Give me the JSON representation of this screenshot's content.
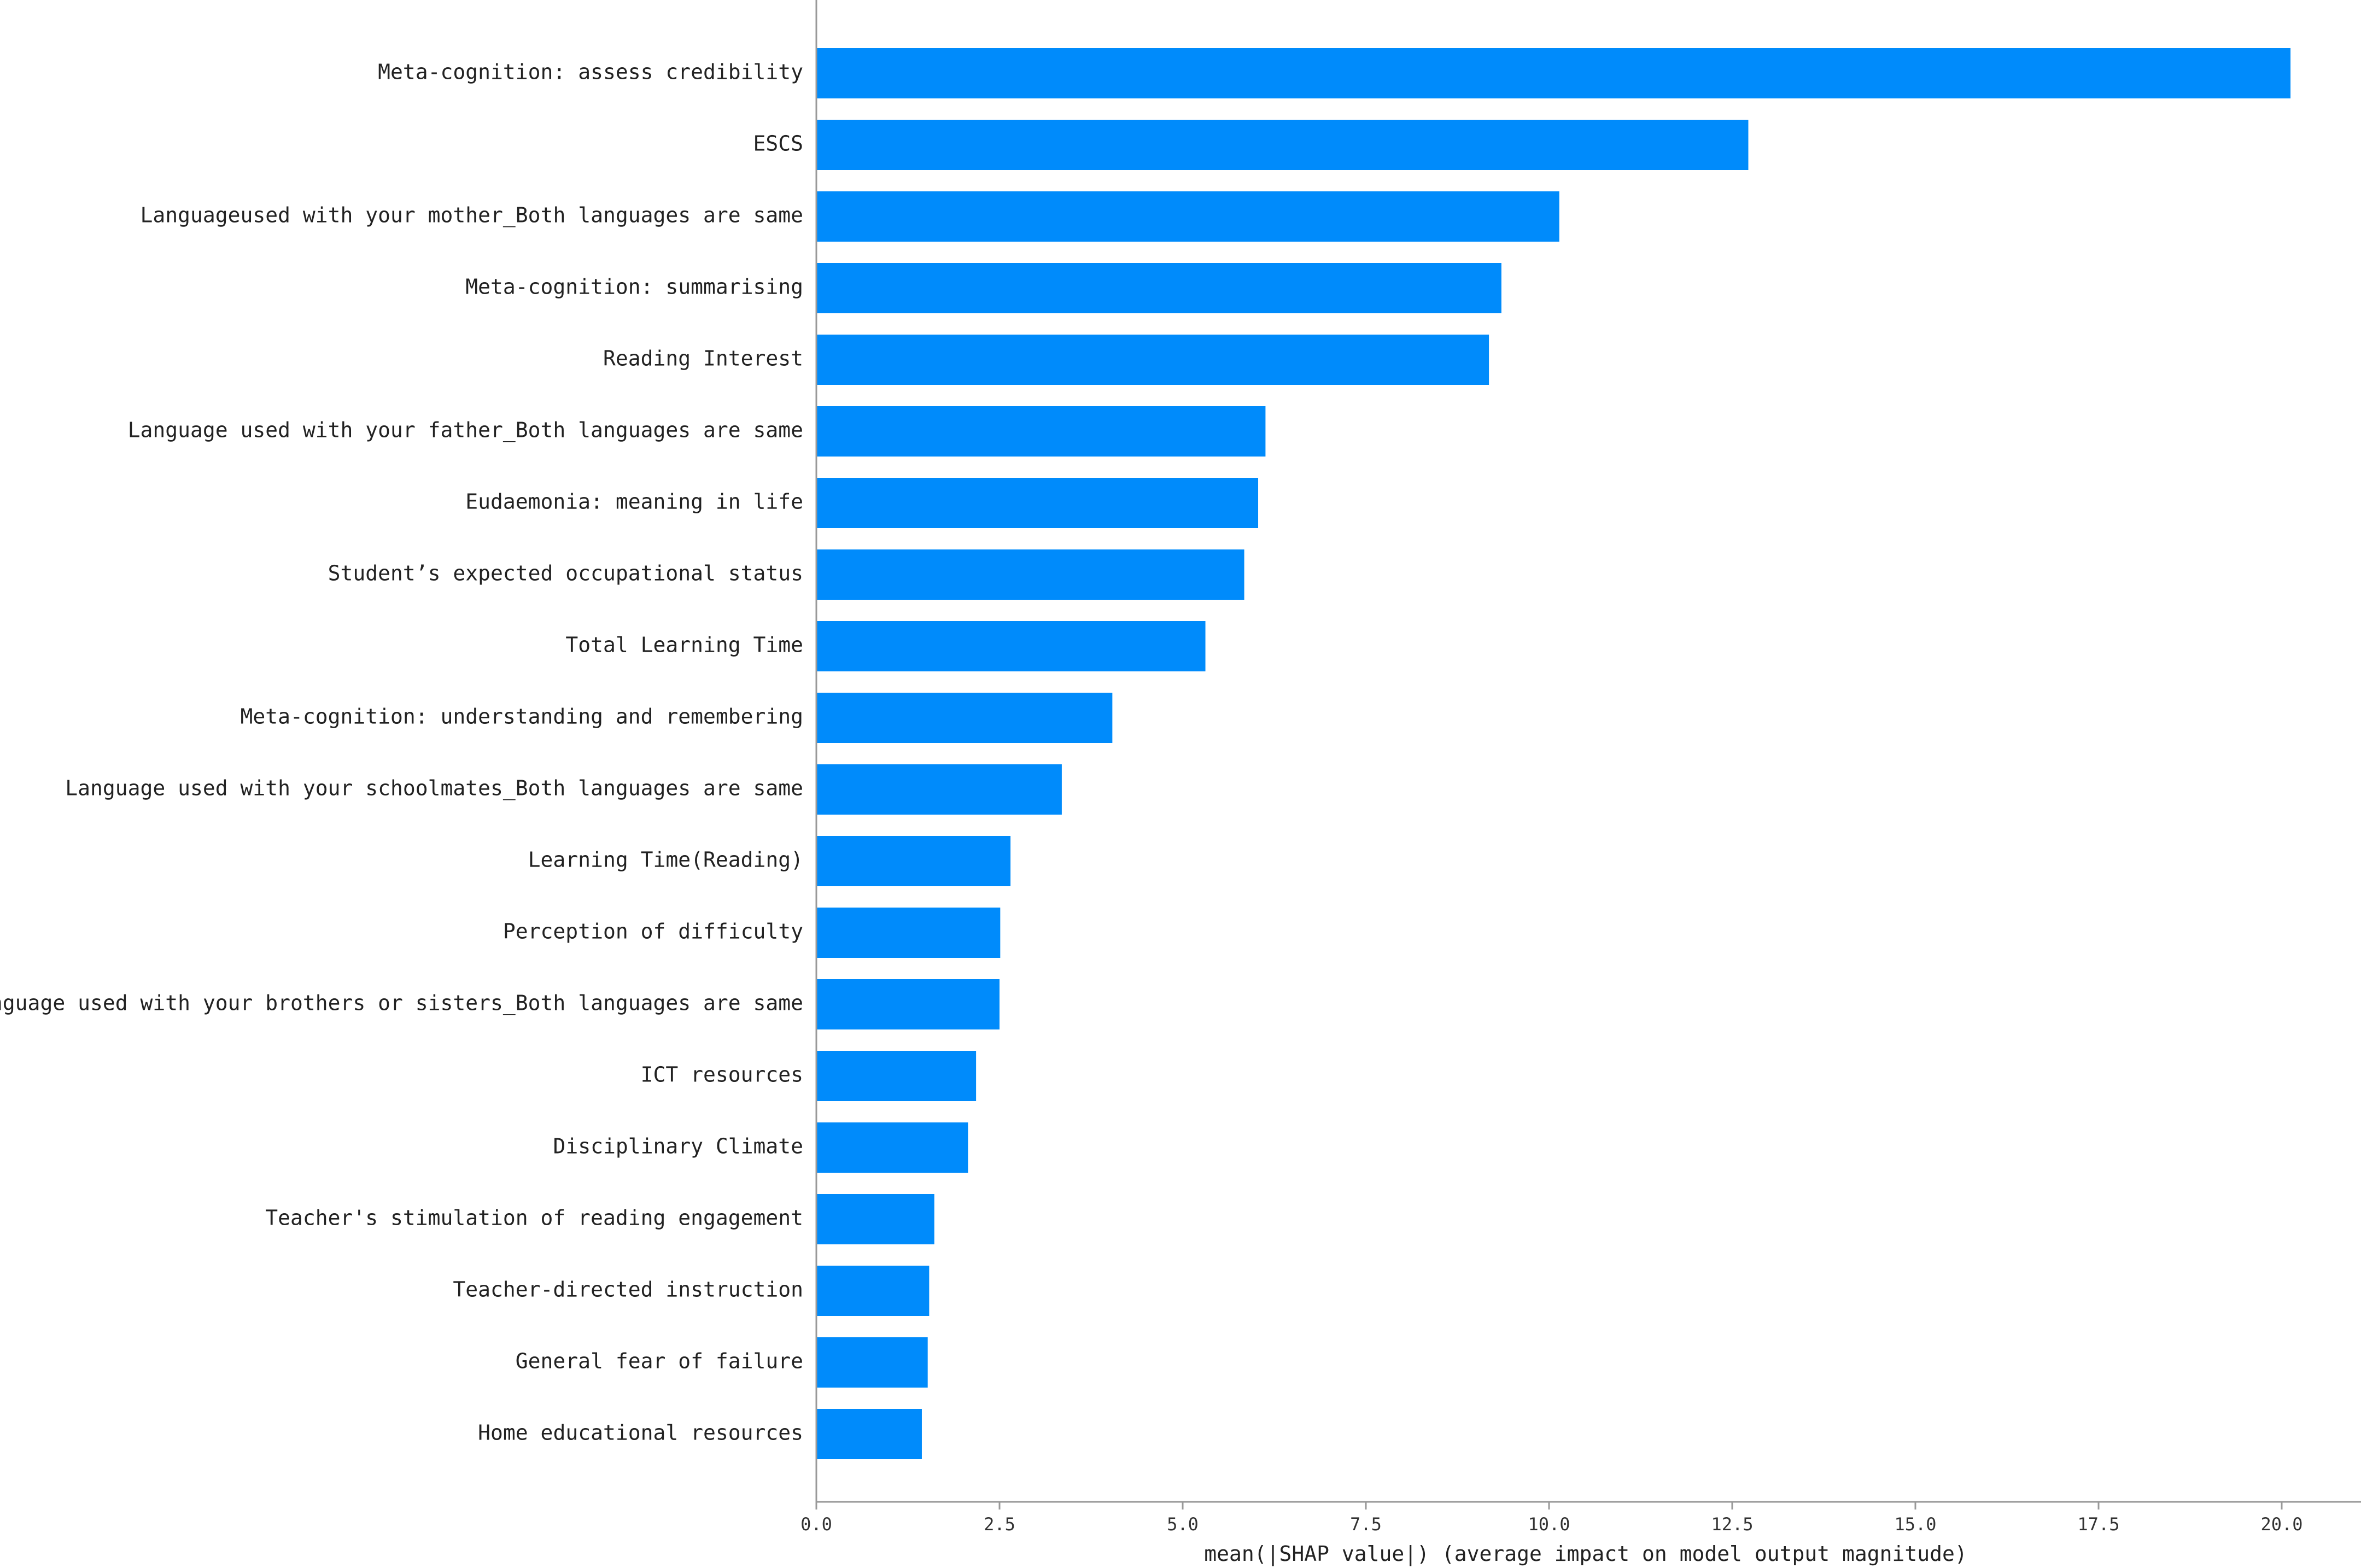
{
  "chart_data": {
    "type": "bar",
    "orientation": "horizontal",
    "categories": [
      "Meta-cognition: assess credibility",
      "ESCS",
      "Languageused with your mother_Both languages are same",
      "Meta-cognition: summarising",
      "Reading Interest",
      "Language used with your father_Both languages are same",
      "Eudaemonia: meaning in life",
      "Student’s expected occupational status",
      "Total Learning Time",
      "Meta-cognition: understanding and remembering",
      "Language used with your schoolmates_Both languages are same",
      "Learning Time(Reading)",
      "Perception of difficulty",
      "Language used with your brothers or sisters_Both languages are same",
      "ICT resources",
      "Disciplinary Climate",
      "Teacher's stimulation of reading engagement",
      "Teacher-directed instruction",
      "General fear of failure",
      "Home educational resources"
    ],
    "values": [
      20.12,
      12.72,
      10.14,
      9.35,
      9.18,
      6.13,
      6.03,
      5.84,
      5.31,
      4.04,
      3.35,
      2.65,
      2.51,
      2.5,
      2.18,
      2.07,
      1.61,
      1.54,
      1.52,
      1.44
    ],
    "xlabel": "mean(|SHAP value|) (average impact on model output magnitude)",
    "ylabel": "",
    "title": "",
    "xlim": [
      0,
      21.1
    ],
    "xticks": [
      "0.0",
      "2.5",
      "5.0",
      "7.5",
      "10.0",
      "12.5",
      "15.0",
      "17.5",
      "20.0"
    ],
    "grid": false,
    "bar_color": "#008BFB",
    "axis_color": "#999999"
  }
}
